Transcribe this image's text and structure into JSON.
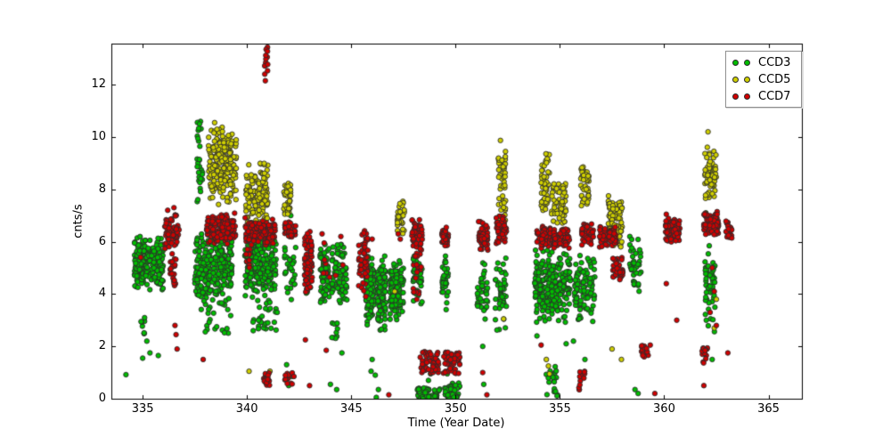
{
  "figure": {
    "background": "#ffffff"
  },
  "chart_data": {
    "type": "scatter",
    "title": "",
    "xlabel": "Time (Year Date)",
    "ylabel": "cnts/s",
    "xlim": [
      333.5,
      366.6
    ],
    "ylim": [
      0,
      13.57
    ],
    "xticks": [
      335,
      340,
      345,
      350,
      355,
      360,
      365
    ],
    "yticks": [
      0,
      2,
      4,
      6,
      8,
      10,
      12
    ],
    "grid": false,
    "legend": {
      "position": "upper right",
      "entries": [
        "CCD3",
        "CCD5",
        "CCD7"
      ]
    },
    "marker": {
      "shape": "circle",
      "radius": 2.7,
      "edge_color": "#2b2b2b"
    },
    "seed": 1337,
    "series": [
      {
        "name": "CCD3",
        "color": "#00bd00",
        "clusters": [
          [
            334.6,
            335.1,
            4.2,
            6.2,
            110,
            "n"
          ],
          [
            335.1,
            336.0,
            4.1,
            6.25,
            130,
            "n"
          ],
          [
            334.85,
            335.1,
            2.4,
            3.1,
            8,
            "u"
          ],
          [
            337.6,
            337.88,
            7.4,
            10.6,
            30,
            "u"
          ],
          [
            337.5,
            339.3,
            3.9,
            6.3,
            240,
            "n"
          ],
          [
            337.8,
            339.3,
            2.5,
            3.9,
            28,
            "u"
          ],
          [
            339.9,
            341.4,
            3.9,
            6.2,
            230,
            "n"
          ],
          [
            340.2,
            341.4,
            2.6,
            3.9,
            26,
            "u"
          ],
          [
            341.8,
            342.35,
            3.6,
            6.2,
            30,
            "n"
          ],
          [
            342.8,
            343.15,
            3.9,
            5.2,
            14,
            "u"
          ],
          [
            343.5,
            343.95,
            3.6,
            5.9,
            70,
            "n"
          ],
          [
            344.05,
            344.8,
            3.6,
            5.9,
            85,
            "n"
          ],
          [
            344.05,
            344.35,
            2.2,
            3.0,
            10,
            "u"
          ],
          [
            345.7,
            346.1,
            2.8,
            5.6,
            110,
            "n"
          ],
          [
            346.25,
            346.65,
            2.6,
            5.5,
            100,
            "n"
          ],
          [
            346.85,
            347.5,
            3.0,
            5.6,
            120,
            "n"
          ],
          [
            347.95,
            348.4,
            3.5,
            5.5,
            40,
            "n"
          ],
          [
            348.15,
            349.25,
            0.0,
            0.45,
            55,
            "u"
          ],
          [
            349.35,
            349.65,
            3.4,
            5.6,
            35,
            "n"
          ],
          [
            349.45,
            350.3,
            0.0,
            0.6,
            50,
            "u"
          ],
          [
            351.0,
            351.55,
            2.8,
            5.5,
            35,
            "n"
          ],
          [
            351.9,
            352.45,
            2.6,
            5.6,
            45,
            "n"
          ],
          [
            353.8,
            354.6,
            2.9,
            5.7,
            130,
            "n"
          ],
          [
            354.6,
            355.5,
            2.9,
            5.7,
            120,
            "n"
          ],
          [
            354.3,
            354.9,
            0.05,
            1.25,
            22,
            "u"
          ],
          [
            355.7,
            356.7,
            2.9,
            5.5,
            90,
            "n"
          ],
          [
            358.35,
            358.9,
            3.9,
            6.25,
            40,
            "n"
          ],
          [
            361.95,
            362.45,
            2.55,
            5.9,
            55,
            "n"
          ]
        ],
        "points": [
          [
            334.2,
            0.92
          ],
          [
            335.75,
            1.65
          ],
          [
            335.0,
            1.55
          ],
          [
            335.2,
            2.2
          ],
          [
            335.35,
            1.75
          ],
          [
            340.3,
            2.6
          ],
          [
            340.55,
            3.0
          ],
          [
            341.0,
            2.9
          ],
          [
            341.45,
            3.3
          ],
          [
            341.9,
            1.3
          ],
          [
            342.0,
            0.5
          ],
          [
            342.15,
            0.85
          ],
          [
            342.1,
            7.0
          ],
          [
            344.0,
            0.55
          ],
          [
            344.3,
            0.35
          ],
          [
            344.55,
            1.75
          ],
          [
            346.0,
            1.5
          ],
          [
            346.15,
            0.9
          ],
          [
            346.2,
            0.05
          ],
          [
            346.3,
            0.35
          ],
          [
            345.95,
            1.05
          ],
          [
            348.7,
            0.7
          ],
          [
            348.8,
            0.95
          ],
          [
            349.6,
            0.95
          ],
          [
            351.35,
            0.55
          ],
          [
            351.3,
            2.0
          ],
          [
            353.9,
            2.4
          ],
          [
            355.3,
            2.1
          ],
          [
            355.65,
            2.2
          ],
          [
            356.2,
            1.5
          ],
          [
            358.6,
            0.35
          ],
          [
            358.75,
            0.2
          ],
          [
            362.0,
            7.1
          ],
          [
            362.3,
            1.5
          ]
        ]
      },
      {
        "name": "CCD5",
        "color": "#cfcf00",
        "clusters": [
          [
            338.15,
            339.5,
            7.4,
            10.45,
            210,
            "n"
          ],
          [
            339.95,
            341.0,
            6.35,
            9.0,
            130,
            "n"
          ],
          [
            341.75,
            342.1,
            7.05,
            8.25,
            40,
            "u"
          ],
          [
            347.2,
            347.55,
            6.3,
            7.55,
            35,
            "u"
          ],
          [
            352.05,
            352.4,
            6.7,
            9.45,
            50,
            "u"
          ],
          [
            354.1,
            354.5,
            7.2,
            9.4,
            55,
            "u"
          ],
          [
            354.6,
            355.3,
            6.7,
            8.25,
            55,
            "u"
          ],
          [
            356.0,
            356.4,
            7.3,
            9.05,
            45,
            "u"
          ],
          [
            357.3,
            358.0,
            5.75,
            7.8,
            90,
            "n"
          ],
          [
            361.95,
            362.5,
            7.4,
            9.7,
            70,
            "n"
          ]
        ],
        "points": [
          [
            338.45,
            10.55
          ],
          [
            340.1,
            1.05
          ],
          [
            341.1,
            1.05
          ],
          [
            347.08,
            4.1
          ],
          [
            352.15,
            9.87
          ],
          [
            352.3,
            3.05
          ],
          [
            354.35,
            1.5
          ],
          [
            354.45,
            1.25
          ],
          [
            354.5,
            0.95
          ],
          [
            357.5,
            1.9
          ],
          [
            357.95,
            1.5
          ],
          [
            362.1,
            10.2
          ],
          [
            362.5,
            3.8
          ],
          [
            362.4,
            2.7
          ]
        ]
      },
      {
        "name": "CCD7",
        "color": "#d10000",
        "clusters": [
          [
            336.05,
            336.75,
            5.7,
            7.15,
            70,
            "n"
          ],
          [
            336.3,
            336.6,
            4.3,
            5.7,
            22,
            "u"
          ],
          [
            338.05,
            339.45,
            5.9,
            7.15,
            160,
            "n"
          ],
          [
            339.9,
            341.35,
            5.85,
            6.95,
            150,
            "n"
          ],
          [
            339.95,
            340.15,
            5.0,
            5.85,
            10,
            "u"
          ],
          [
            340.85,
            341.0,
            11.95,
            13.45,
            13,
            "u"
          ],
          [
            340.8,
            341.1,
            0.5,
            1.0,
            20,
            "u"
          ],
          [
            341.8,
            342.2,
            0.4,
            1.0,
            14,
            "u"
          ],
          [
            341.8,
            342.35,
            6.1,
            6.75,
            40,
            "n"
          ],
          [
            342.75,
            343.15,
            3.7,
            6.4,
            70,
            "n",
            0.6
          ],
          [
            343.55,
            344.6,
            4.4,
            5.5,
            8,
            "u"
          ],
          [
            345.35,
            345.8,
            3.4,
            6.5,
            55,
            "n",
            0.65
          ],
          [
            347.9,
            348.4,
            5.6,
            6.9,
            55,
            "n"
          ],
          [
            347.95,
            348.35,
            3.7,
            5.6,
            20,
            "u"
          ],
          [
            348.3,
            349.2,
            0.95,
            1.8,
            55,
            "u"
          ],
          [
            349.4,
            350.2,
            0.95,
            1.8,
            50,
            "u"
          ],
          [
            349.35,
            349.65,
            5.8,
            6.6,
            40,
            "n"
          ],
          [
            351.05,
            351.55,
            5.6,
            6.9,
            55,
            "n"
          ],
          [
            351.95,
            352.45,
            5.8,
            7.0,
            55,
            "n"
          ],
          [
            353.9,
            354.8,
            5.75,
            6.6,
            90,
            "n"
          ],
          [
            354.7,
            355.45,
            5.75,
            6.5,
            70,
            "n"
          ],
          [
            356.05,
            356.6,
            5.85,
            6.7,
            55,
            "n"
          ],
          [
            356.9,
            357.7,
            5.75,
            6.6,
            85,
            "n"
          ],
          [
            357.5,
            358.05,
            4.55,
            5.4,
            40,
            "u"
          ],
          [
            358.9,
            359.35,
            1.6,
            2.05,
            22,
            "u"
          ],
          [
            360.05,
            360.75,
            5.95,
            6.9,
            90,
            "n"
          ],
          [
            361.9,
            362.6,
            6.15,
            7.2,
            85,
            "n"
          ],
          [
            362.95,
            363.25,
            6.1,
            6.8,
            25,
            "u"
          ],
          [
            361.8,
            362.1,
            1.35,
            1.95,
            13,
            "u"
          ],
          [
            355.9,
            356.2,
            0.3,
            1.1,
            12,
            "u"
          ]
        ],
        "points": [
          [
            334.9,
            5.4
          ],
          [
            336.2,
            7.2
          ],
          [
            336.5,
            7.3
          ],
          [
            336.55,
            2.8
          ],
          [
            336.6,
            2.45
          ],
          [
            336.65,
            1.9
          ],
          [
            337.9,
            1.5
          ],
          [
            342.25,
            0.85
          ],
          [
            342.8,
            2.25
          ],
          [
            343.0,
            0.5
          ],
          [
            343.6,
            6.3
          ],
          [
            343.7,
            5.95
          ],
          [
            343.8,
            1.85
          ],
          [
            344.5,
            6.2
          ],
          [
            346.0,
            6.1
          ],
          [
            346.8,
            0.15
          ],
          [
            347.25,
            6.3
          ],
          [
            347.35,
            6.1
          ],
          [
            351.3,
            1.0
          ],
          [
            351.5,
            0.15
          ],
          [
            354.1,
            2.05
          ],
          [
            359.55,
            0.2
          ],
          [
            360.1,
            7.05
          ],
          [
            360.1,
            4.4
          ],
          [
            360.6,
            3.0
          ],
          [
            363.05,
            1.75
          ],
          [
            361.9,
            0.5
          ],
          [
            362.3,
            5.0
          ],
          [
            362.4,
            4.1
          ],
          [
            362.2,
            3.3
          ],
          [
            362.5,
            2.8
          ]
        ]
      }
    ]
  }
}
